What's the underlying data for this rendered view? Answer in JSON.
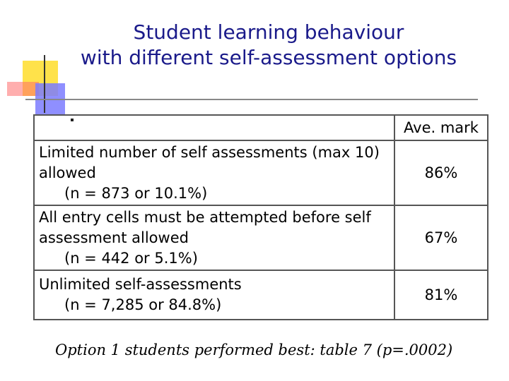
{
  "slide": {
    "title_line1": "Student learning behaviour",
    "title_line2": "with different self-assessment options",
    "table_header_right": "Ave. mark",
    "rows": [
      {
        "option_line1": "Limited number of self assessments (max 10)",
        "option_line2": "allowed",
        "count": "(n = 873 or 10.1%)",
        "mark": "86%"
      },
      {
        "option_line1": "All entry cells must be attempted before self",
        "option_line2": "assessment allowed",
        "count": "(n = 442 or 5.1%)",
        "mark": "67%"
      },
      {
        "option_line1": "Unlimited self-assessments",
        "option_line2": "",
        "count": "(n = 7,285 or 84.8%)",
        "mark": "81%"
      }
    ],
    "footnote": "Option 1 students performed best: table 7 (p=.0002)"
  }
}
